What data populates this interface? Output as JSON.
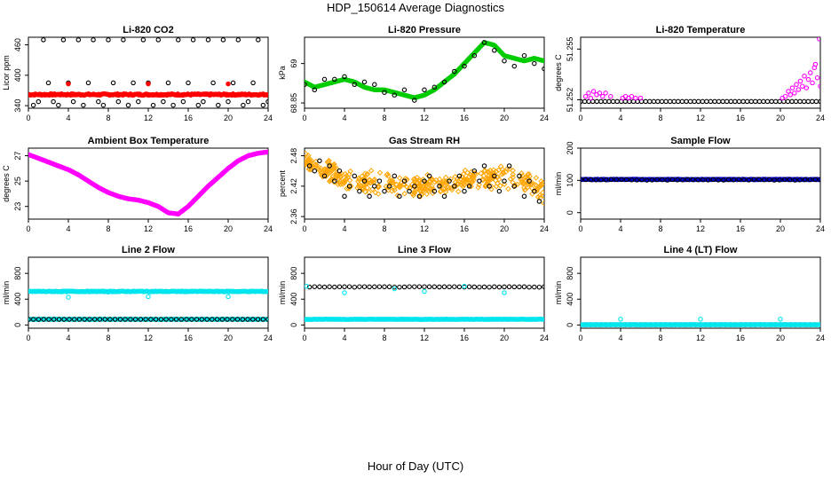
{
  "title": "HDP_150614  Average Diagnostics",
  "xlabel": "Hour of Day (UTC)",
  "colors": {
    "black": "#000000",
    "red": "#ff0000",
    "green": "#00cc00",
    "magenta": "#ff00ff",
    "orange": "#ffa500",
    "blue": "#0000cc",
    "cyan": "#00e5ee"
  },
  "chart_data": [
    {
      "type": "scatter",
      "title": "Li-820 CO2",
      "ylabel": "Licor ppm",
      "xlim": [
        0,
        24
      ],
      "ylim": [
        335,
        475
      ],
      "xticks": [
        0,
        4,
        8,
        12,
        16,
        20,
        24
      ],
      "yticks": [
        340,
        400,
        460
      ],
      "series": [
        {
          "color": "#ff0000",
          "filled": true,
          "kind": "band",
          "from": 0,
          "to": 24,
          "count": 240,
          "y": 362,
          "jitter": 1.5
        },
        {
          "color": "#000000",
          "kind": "points",
          "x": [
            0.5,
            1.0,
            1.5,
            2.0,
            2.5,
            3.0,
            3.5,
            4.0,
            4.5,
            5.0,
            5.5,
            6.0,
            6.5,
            7.0,
            7.5,
            8.0,
            8.5,
            9.0,
            9.5,
            10.0,
            10.5,
            11.0,
            11.5,
            12.0,
            12.5,
            13.0,
            13.5,
            14.0,
            14.5,
            15.0,
            15.5,
            16.0,
            16.5,
            17.0,
            17.5,
            18.0,
            18.5,
            19.0,
            19.5,
            20.0,
            20.5,
            21.0,
            21.5,
            22.0,
            22.5,
            23.0,
            23.5,
            24.0
          ],
          "y": [
            341,
            348,
            470,
            385,
            348,
            341,
            470,
            385,
            348,
            470,
            341,
            385,
            470,
            348,
            341,
            470,
            385,
            348,
            470,
            341,
            385,
            348,
            470,
            385,
            341,
            470,
            348,
            385,
            341,
            470,
            348,
            385,
            470,
            341,
            348,
            470,
            385,
            341,
            470,
            348,
            385,
            470,
            341,
            348,
            385,
            470,
            341,
            348
          ]
        },
        {
          "color": "#ff0000",
          "filled": true,
          "kind": "points",
          "x": [
            4.0,
            12.0,
            20.0
          ],
          "y": [
            383,
            383,
            383
          ]
        }
      ]
    },
    {
      "type": "scatter",
      "title": "Li-820 Pressure",
      "ylabel": "kPa",
      "xlim": [
        0,
        24
      ],
      "ylim": [
        68.83,
        69.1
      ],
      "xticks": [
        0,
        4,
        8,
        12,
        16,
        20,
        24
      ],
      "yticks": [
        68.85,
        69.0
      ],
      "series": [
        {
          "color": "#00cc00",
          "filled": true,
          "kind": "line",
          "x": [
            0,
            1,
            2,
            3,
            4,
            5,
            6,
            7,
            8,
            9,
            10,
            11,
            12,
            13,
            14,
            15,
            16,
            17,
            18,
            19,
            20,
            21,
            22,
            23,
            24
          ],
          "y": [
            68.93,
            68.91,
            68.92,
            68.93,
            68.94,
            68.93,
            68.91,
            68.9,
            68.9,
            68.89,
            68.88,
            68.87,
            68.88,
            68.9,
            68.93,
            68.96,
            69.0,
            69.04,
            69.08,
            69.07,
            69.03,
            69.02,
            69.01,
            69.02,
            69.01
          ]
        },
        {
          "color": "#000000",
          "kind": "points",
          "x": [
            0,
            1,
            2,
            3,
            4,
            5,
            6,
            7,
            8,
            9,
            10,
            11,
            12,
            13,
            14,
            15,
            16,
            17,
            18,
            19,
            20,
            21,
            22,
            23,
            24
          ],
          "y": [
            68.92,
            68.9,
            68.94,
            68.94,
            68.95,
            68.92,
            68.93,
            68.92,
            68.89,
            68.88,
            68.9,
            68.86,
            68.9,
            68.91,
            68.93,
            68.97,
            68.99,
            69.03,
            69.08,
            69.05,
            69.01,
            68.99,
            69.03,
            69.0,
            68.98
          ]
        }
      ]
    },
    {
      "type": "scatter",
      "title": "Li-820 Temperature",
      "ylabel": "degrees C",
      "xlim": [
        0,
        24
      ],
      "ylim": [
        51.2515,
        51.2557
      ],
      "xticks": [
        0,
        4,
        8,
        12,
        16,
        20,
        24
      ],
      "yticks": [
        51.252,
        51.255
      ],
      "ytick_labels": [
        "51.252",
        "51.255"
      ],
      "series": [
        {
          "color": "#000000",
          "kind": "band",
          "from": 0,
          "to": 24,
          "count": 60,
          "y": 51.2519,
          "jitter": 0
        },
        {
          "color": "#ff00ff",
          "kind": "points",
          "x": [
            0.5,
            0.8,
            1.0,
            1.3,
            1.6,
            1.9,
            2.2,
            2.5,
            3.0,
            4.2,
            4.5,
            4.8,
            5.1,
            5.5,
            6.0,
            20.2,
            20.5,
            20.8,
            21.0,
            21.2,
            21.4,
            21.6,
            21.8,
            22.0,
            22.2,
            22.4,
            22.6,
            22.8,
            23.0,
            23.2,
            23.4,
            23.5,
            23.7,
            23.9,
            24.0
          ],
          "y": [
            51.2522,
            51.2524,
            51.2521,
            51.2525,
            51.2523,
            51.2524,
            51.2522,
            51.2524,
            51.2522,
            51.2521,
            51.2522,
            51.2521,
            51.2522,
            51.2521,
            51.2521,
            51.2521,
            51.2522,
            51.2525,
            51.2523,
            51.2527,
            51.2524,
            51.2529,
            51.2526,
            51.2531,
            51.2528,
            51.2534,
            51.2527,
            51.2532,
            51.2536,
            51.253,
            51.2539,
            51.2541,
            51.2533,
            51.2556,
            51.2528
          ]
        }
      ]
    },
    {
      "type": "scatter",
      "title": "Ambient Box Temperature",
      "ylabel": "degrees C",
      "xlim": [
        0,
        24
      ],
      "ylim": [
        22,
        27.6
      ],
      "xticks": [
        0,
        4,
        8,
        12,
        16,
        20,
        24
      ],
      "yticks": [
        23,
        25,
        27
      ],
      "series": [
        {
          "color": "#ff00ff",
          "filled": true,
          "kind": "line",
          "x": [
            0,
            1,
            2,
            3,
            4,
            5,
            6,
            7,
            8,
            9,
            10,
            11,
            12,
            13,
            14,
            15,
            16,
            17,
            18,
            19,
            20,
            21,
            22,
            23,
            24
          ],
          "y": [
            27.1,
            26.8,
            26.5,
            26.2,
            25.9,
            25.5,
            25.0,
            24.5,
            24.1,
            23.8,
            23.6,
            23.5,
            23.3,
            23.0,
            22.5,
            22.4,
            23.0,
            23.8,
            24.6,
            25.3,
            26.0,
            26.6,
            27.0,
            27.2,
            27.3
          ]
        }
      ]
    },
    {
      "type": "scatter",
      "title": "Gas Stream RH",
      "ylabel": "percent",
      "xlim": [
        0,
        24
      ],
      "ylim": [
        2.355,
        2.495
      ],
      "xticks": [
        0,
        4,
        8,
        12,
        16,
        20,
        24
      ],
      "yticks": [
        2.36,
        2.42,
        2.48
      ],
      "series": [
        {
          "color": "#ffa500",
          "kind": "cloud",
          "from": 0,
          "to": 24,
          "count": 420,
          "center": [
            [
              0,
              2.47
            ],
            [
              2,
              2.455
            ],
            [
              4,
              2.435
            ],
            [
              6,
              2.43
            ],
            [
              8,
              2.425
            ],
            [
              10,
              2.42
            ],
            [
              12,
              2.42
            ],
            [
              14,
              2.425
            ],
            [
              16,
              2.43
            ],
            [
              18,
              2.435
            ],
            [
              20,
              2.44
            ],
            [
              22,
              2.43
            ],
            [
              24,
              2.41
            ]
          ],
          "spread": 0.025
        },
        {
          "color": "#000000",
          "kind": "points",
          "x": [
            0.5,
            1.0,
            1.5,
            2.0,
            2.5,
            3.0,
            3.5,
            4.0,
            4.5,
            5.0,
            5.5,
            6.0,
            6.5,
            7.0,
            7.5,
            8.0,
            8.5,
            9.0,
            9.5,
            10.0,
            10.5,
            11.0,
            11.5,
            12.0,
            12.5,
            13.0,
            13.5,
            14.0,
            14.5,
            15.0,
            15.5,
            16.0,
            16.5,
            17.0,
            17.5,
            18.0,
            18.5,
            19.0,
            19.5,
            20.0,
            20.5,
            21.0,
            21.5,
            22.0,
            22.5,
            23.0,
            23.5
          ],
          "y": [
            2.46,
            2.45,
            2.47,
            2.44,
            2.46,
            2.43,
            2.45,
            2.4,
            2.42,
            2.44,
            2.41,
            2.43,
            2.4,
            2.42,
            2.43,
            2.41,
            2.42,
            2.44,
            2.4,
            2.43,
            2.41,
            2.42,
            2.4,
            2.43,
            2.44,
            2.41,
            2.42,
            2.4,
            2.43,
            2.42,
            2.44,
            2.41,
            2.42,
            2.45,
            2.43,
            2.46,
            2.42,
            2.44,
            2.41,
            2.43,
            2.46,
            2.42,
            2.44,
            2.4,
            2.43,
            2.41,
            2.39
          ]
        }
      ]
    },
    {
      "type": "scatter",
      "title": "Sample Flow",
      "ylabel": "ml/min",
      "xlim": [
        0,
        24
      ],
      "ylim": [
        -20,
        200
      ],
      "xticks": [
        0,
        4,
        8,
        12,
        16,
        20,
        24
      ],
      "yticks": [
        0,
        100,
        200
      ],
      "series": [
        {
          "color": "#0000cc",
          "filled": true,
          "kind": "band",
          "from": 0,
          "to": 24,
          "count": 240,
          "y": 103,
          "jitter": 0.8
        },
        {
          "color": "#000000",
          "kind": "band",
          "from": 0,
          "to": 24,
          "count": 48,
          "y": 102,
          "jitter": 1.2
        }
      ]
    },
    {
      "type": "scatter",
      "title": "Line 2 Flow",
      "ylabel": "ml/min",
      "xlim": [
        0,
        24
      ],
      "ylim": [
        -50,
        1050
      ],
      "xticks": [
        0,
        4,
        8,
        12,
        16,
        20,
        24
      ],
      "yticks": [
        0,
        400,
        800
      ],
      "series": [
        {
          "color": "#00e5ee",
          "filled": true,
          "kind": "band",
          "from": 0,
          "to": 24,
          "count": 240,
          "y": 520,
          "jitter": 6
        },
        {
          "color": "#00e5ee",
          "filled": true,
          "kind": "band",
          "from": 0,
          "to": 24,
          "count": 240,
          "y": 88,
          "jitter": 2
        },
        {
          "color": "#000000",
          "kind": "band",
          "from": 0,
          "to": 24,
          "count": 48,
          "y": 88,
          "jitter": 0
        },
        {
          "color": "#00e5ee",
          "kind": "points",
          "x": [
            4.0,
            8.0,
            12.0,
            15.5,
            20.0
          ],
          "y": [
            430,
            510,
            440,
            520,
            440
          ]
        }
      ]
    },
    {
      "type": "scatter",
      "title": "Line 3 Flow",
      "ylabel": "ml/min",
      "xlim": [
        0,
        24
      ],
      "ylim": [
        -50,
        1050
      ],
      "xticks": [
        0,
        4,
        8,
        12,
        16,
        20,
        24
      ],
      "yticks": [
        0,
        400,
        800
      ],
      "series": [
        {
          "color": "#00e5ee",
          "filled": true,
          "kind": "band",
          "from": 0,
          "to": 24,
          "count": 240,
          "y": 88,
          "jitter": 2
        },
        {
          "color": "#000000",
          "kind": "band",
          "from": 0.5,
          "to": 24,
          "count": 48,
          "y": 590,
          "jitter": 4
        },
        {
          "color": "#00e5ee",
          "kind": "points",
          "x": [
            0.2,
            4.0,
            9.0,
            12.0,
            16.0,
            20.0
          ],
          "y": [
            600,
            500,
            560,
            520,
            600,
            500
          ]
        }
      ]
    },
    {
      "type": "scatter",
      "title": "Line 4 (LT) Flow",
      "ylabel": "ml/min",
      "xlim": [
        0,
        24
      ],
      "ylim": [
        -50,
        1050
      ],
      "xticks": [
        0,
        4,
        8,
        12,
        16,
        20,
        24
      ],
      "yticks": [
        0,
        400,
        800
      ],
      "series": [
        {
          "color": "#000000",
          "kind": "band",
          "from": 0.5,
          "to": 24,
          "count": 48,
          "y": 5,
          "jitter": 0
        },
        {
          "color": "#00e5ee",
          "filled": true,
          "kind": "band",
          "from": 0,
          "to": 24,
          "count": 240,
          "y": 5,
          "jitter": 1
        },
        {
          "color": "#00e5ee",
          "kind": "points",
          "x": [
            0.2,
            4.0,
            12.0,
            20.0
          ],
          "y": [
            5,
            90,
            90,
            90
          ]
        }
      ]
    }
  ]
}
